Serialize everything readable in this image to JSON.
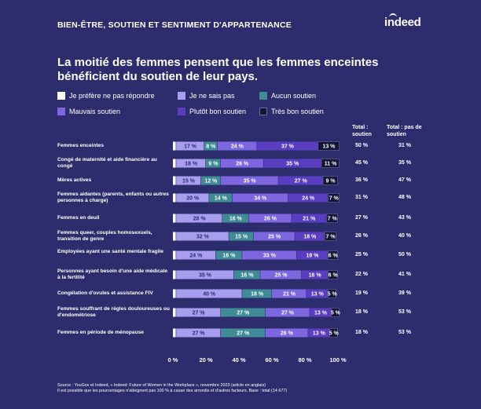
{
  "header": {
    "title": "BIEN-ÊTRE, SOUTIEN ET SENTIMENT D'APPARTENANCE",
    "logo": "indeed"
  },
  "colors": {
    "background": "#2d2d6e",
    "prefer_not": "#ffffff",
    "dont_know": "#a99df0",
    "no_support": "#3f8c96",
    "bad_support": "#7d66e0",
    "rather_good": "#5a3dc0",
    "very_good": "#141433"
  },
  "chart_data": {
    "type": "bar",
    "orientation": "horizontal-stacked",
    "title": "La moitié des femmes pensent que les femmes enceintes bénéficient du soutien de leur pays.",
    "legend": [
      {
        "key": "prefer_not",
        "label": "Je préfère ne pas répondre"
      },
      {
        "key": "dont_know",
        "label": "Je ne sais pas"
      },
      {
        "key": "no_support",
        "label": "Aucun soutien"
      },
      {
        "key": "bad_support",
        "label": "Mauvais soutien"
      },
      {
        "key": "rather_good",
        "label": "Plutôt bon soutien"
      },
      {
        "key": "very_good",
        "label": "Très bon soutien"
      }
    ],
    "xlim": [
      0,
      100
    ],
    "x_ticks": [
      "0 %",
      "20 %",
      "40 %",
      "60 %",
      "80 %",
      "100 %"
    ],
    "column_headers": {
      "total_support": "Total : soutien",
      "total_no_support": "Total : pas de soutien"
    },
    "categories": [
      {
        "label": "Femmes enceintes",
        "values": [
          2,
          17,
          8,
          24,
          37,
          13
        ],
        "total_support": "50 %",
        "total_no_support": "31 %"
      },
      {
        "label": "Congé de maternité et aide financière au congé",
        "values": [
          2,
          18,
          9,
          26,
          35,
          11
        ],
        "total_support": "45 %",
        "total_no_support": "35 %"
      },
      {
        "label": "Mères actives",
        "values": [
          2,
          15,
          12,
          35,
          27,
          9
        ],
        "total_support": "36 %",
        "total_no_support": "47 %"
      },
      {
        "label": "Femmes aidantes (parents, enfants ou autres personnes à charge)",
        "values": [
          2,
          20,
          14,
          34,
          24,
          7
        ],
        "total_support": "31 %",
        "total_no_support": "48 %"
      },
      {
        "label": "Femmes en deuil",
        "values": [
          2,
          28,
          16,
          26,
          21,
          7
        ],
        "total_support": "27 %",
        "total_no_support": "43 %"
      },
      {
        "label": "Femmes queer, couples homosexuels, transition de genre",
        "values": [
          2,
          32,
          15,
          25,
          18,
          7
        ],
        "total_support": "26 %",
        "total_no_support": "40 %"
      },
      {
        "label": "Employées ayant une santé mentale fragile",
        "values": [
          2,
          24,
          16,
          33,
          19,
          6
        ],
        "total_support": "25 %",
        "total_no_support": "50 %"
      },
      {
        "label": "Personnes ayant besoin d'une aide médicale à la fertilité",
        "values": [
          2,
          35,
          16,
          25,
          16,
          6
        ],
        "total_support": "22 %",
        "total_no_support": "41 %"
      },
      {
        "label": "Congélation d'ovules et assistance FIV",
        "values": [
          2,
          40,
          18,
          21,
          13,
          5
        ],
        "total_support": "19 %",
        "total_no_support": "39 %"
      },
      {
        "label": "Femmes souffrant de règles douloureuses ou d'endométriose",
        "values": [
          2,
          27,
          27,
          27,
          13,
          5
        ],
        "total_support": "18 %",
        "total_no_support": "53 %"
      },
      {
        "label": "Femmes en période de ménopause",
        "values": [
          2,
          27,
          27,
          26,
          13,
          5
        ],
        "total_support": "18 %",
        "total_no_support": "53 %"
      }
    ],
    "grid": false,
    "legend_position": "top"
  },
  "source": {
    "line1": "Source : YouGov et Indeed, « Indeed: Future of Women in the Workplace », novembre 2023 (article en anglais)",
    "line2": "Il est possible que les pourcentages n'atteignent pas 100 % à cause des arrondis et d'autres facteurs. Base : total (14 677)"
  }
}
